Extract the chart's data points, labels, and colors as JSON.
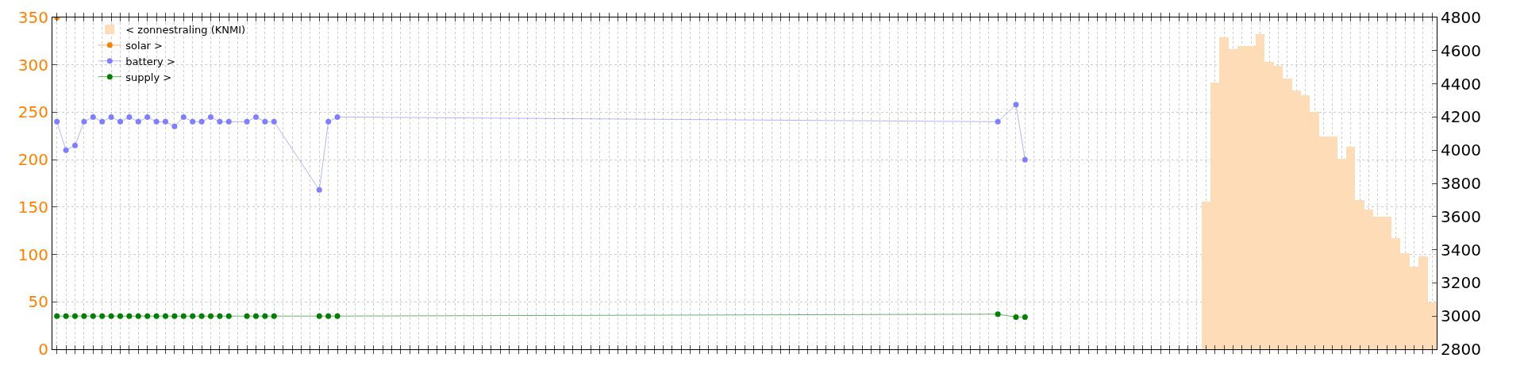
{
  "chart_data": {
    "type": "line",
    "categories": [
      null,
      null,
      null,
      null,
      null,
      null,
      null,
      null,
      null,
      null,
      null,
      null,
      null,
      null,
      null,
      null,
      null,
      null,
      null,
      null,
      null,
      null,
      null,
      null,
      null,
      null,
      null,
      null,
      null,
      null,
      null,
      null,
      null,
      null,
      null,
      null,
      null,
      null,
      null,
      null,
      null,
      null,
      null,
      null,
      null,
      null,
      null,
      null,
      null,
      null,
      null,
      null,
      null,
      null,
      null,
      null,
      null,
      null,
      null,
      null,
      null,
      null,
      null,
      null,
      null,
      null,
      null,
      null,
      null,
      null,
      null,
      null,
      null,
      null,
      null,
      null,
      null,
      null,
      null,
      null,
      null,
      null,
      null,
      null,
      null,
      null,
      null,
      null,
      null,
      null,
      null,
      null,
      null,
      null,
      null,
      null,
      null,
      null,
      null,
      null,
      null,
      null,
      null,
      null,
      null,
      null,
      null,
      null,
      null,
      null,
      null,
      null,
      null,
      null,
      null,
      null,
      null,
      null,
      null,
      null,
      null,
      null,
      null,
      null,
      null,
      null,
      null,
      null,
      null,
      null,
      null,
      null,
      null,
      null,
      null,
      null,
      null,
      null,
      null,
      null,
      null,
      null,
      null,
      null,
      null,
      null,
      null,
      null,
      null,
      null,
      null,
      null,
      null
    ],
    "series": [
      {
        "name": "< zonnestraling (KNMI)",
        "type": "bar",
        "axis": "y2",
        "color": "#ffdcb8",
        "values": [
          null,
          null,
          null,
          null,
          null,
          null,
          null,
          null,
          null,
          null,
          null,
          null,
          null,
          null,
          null,
          null,
          null,
          null,
          null,
          null,
          null,
          null,
          null,
          null,
          null,
          null,
          null,
          null,
          null,
          null,
          null,
          null,
          null,
          null,
          null,
          null,
          null,
          null,
          null,
          null,
          null,
          null,
          null,
          null,
          null,
          null,
          null,
          null,
          null,
          null,
          null,
          null,
          null,
          null,
          null,
          null,
          null,
          null,
          null,
          null,
          null,
          null,
          null,
          null,
          null,
          null,
          null,
          null,
          null,
          null,
          null,
          null,
          null,
          null,
          null,
          null,
          null,
          null,
          null,
          null,
          null,
          null,
          null,
          null,
          null,
          null,
          null,
          null,
          null,
          null,
          null,
          null,
          null,
          null,
          null,
          null,
          null,
          null,
          null,
          null,
          null,
          null,
          null,
          null,
          null,
          null,
          null,
          null,
          null,
          null,
          null,
          null,
          null,
          null,
          null,
          null,
          null,
          null,
          null,
          null,
          null,
          null,
          null,
          null,
          null,
          null,
          null,
          3690,
          4410,
          4680,
          4610,
          4630,
          4630,
          4700,
          4530,
          4510,
          4430,
          4360,
          4330,
          4230,
          4080,
          4080,
          3950,
          4020,
          3700,
          3640,
          3600,
          3600,
          3470,
          3380,
          3300,
          3360,
          3080
        ]
      },
      {
        "name": "solar >",
        "color": "#f5800a",
        "values": [
          350,
          null,
          null,
          null,
          null,
          null,
          null,
          null,
          null,
          null,
          null,
          null,
          null,
          null,
          null,
          null,
          null,
          null,
          null,
          null,
          null,
          null,
          null,
          null,
          null,
          null,
          null,
          null,
          null,
          null,
          null,
          null,
          null,
          null,
          null,
          null,
          null,
          null,
          null,
          null,
          null,
          null,
          null,
          null,
          null,
          null,
          null,
          null,
          null,
          null,
          null,
          null,
          null,
          null,
          null,
          null,
          null,
          null,
          null,
          null,
          null,
          null,
          null,
          null,
          null,
          null,
          null,
          null,
          null,
          null,
          null,
          null,
          null,
          null,
          null,
          null,
          null,
          null,
          null,
          null,
          null,
          null,
          null,
          null,
          null,
          null,
          null,
          null,
          null,
          null,
          null,
          null,
          null,
          null,
          null,
          null,
          null,
          null,
          null,
          null,
          null,
          null,
          null,
          null,
          null,
          null,
          null,
          null,
          null,
          null,
          null,
          null,
          null,
          null,
          null,
          null,
          null,
          null,
          null,
          null,
          null,
          null,
          null,
          null,
          null,
          null,
          null,
          null,
          null,
          null,
          null,
          null,
          null,
          null,
          null,
          null,
          null,
          null,
          null,
          null,
          null,
          null,
          null,
          null,
          null,
          null,
          null,
          null,
          null,
          null,
          null,
          null,
          null
        ]
      },
      {
        "name": "battery >",
        "color": "#8080ff",
        "values": [
          240,
          210,
          215,
          240,
          245,
          240,
          245,
          240,
          245,
          240,
          245,
          240,
          240,
          235,
          245,
          240,
          240,
          245,
          240,
          240,
          null,
          240,
          245,
          240,
          240,
          null,
          null,
          null,
          null,
          168,
          240,
          245,
          null,
          null,
          null,
          null,
          null,
          null,
          null,
          null,
          null,
          null,
          null,
          null,
          null,
          null,
          null,
          null,
          null,
          null,
          null,
          null,
          null,
          null,
          null,
          null,
          null,
          null,
          null,
          null,
          null,
          null,
          null,
          null,
          null,
          null,
          null,
          null,
          null,
          null,
          null,
          null,
          null,
          null,
          null,
          null,
          null,
          null,
          null,
          null,
          null,
          null,
          null,
          null,
          null,
          null,
          null,
          null,
          null,
          null,
          null,
          null,
          null,
          null,
          null,
          null,
          null,
          null,
          null,
          null,
          null,
          null,
          null,
          null,
          240,
          null,
          258,
          200,
          null,
          null,
          null,
          null,
          null,
          null,
          null,
          null,
          null,
          null,
          null,
          null,
          null,
          null,
          null,
          null,
          null,
          null,
          null,
          null,
          null,
          null,
          null,
          null,
          null,
          null,
          null,
          null,
          null,
          null,
          null,
          null,
          null,
          null,
          null,
          null,
          null,
          null,
          null,
          null,
          null,
          null,
          null,
          null,
          null
        ]
      },
      {
        "name": "supply >",
        "color": "#008000",
        "values": [
          35,
          35,
          35,
          35,
          35,
          35,
          35,
          35,
          35,
          35,
          35,
          35,
          35,
          35,
          35,
          35,
          35,
          35,
          35,
          35,
          null,
          35,
          35,
          35,
          35,
          null,
          null,
          null,
          null,
          35,
          35,
          35,
          null,
          null,
          null,
          null,
          null,
          null,
          null,
          null,
          null,
          null,
          null,
          null,
          null,
          null,
          null,
          null,
          null,
          null,
          null,
          null,
          null,
          null,
          null,
          null,
          null,
          null,
          null,
          null,
          null,
          null,
          null,
          null,
          null,
          null,
          null,
          null,
          null,
          null,
          null,
          null,
          null,
          null,
          null,
          null,
          null,
          null,
          null,
          null,
          null,
          null,
          null,
          null,
          null,
          null,
          null,
          null,
          null,
          null,
          null,
          null,
          null,
          null,
          null,
          null,
          null,
          null,
          null,
          null,
          null,
          null,
          null,
          null,
          37,
          null,
          34,
          34,
          null,
          null,
          null,
          null,
          null,
          null,
          null,
          null,
          null,
          null,
          null,
          null,
          null,
          null,
          null,
          null,
          null,
          null,
          null,
          null,
          null,
          null,
          null,
          null,
          null,
          null,
          null,
          null,
          null,
          null,
          null,
          null,
          null,
          null,
          null,
          null,
          null,
          null,
          null,
          null,
          null,
          null,
          null,
          null,
          null
        ]
      }
    ],
    "ylim": [
      0,
      350
    ],
    "yticks": [
      0,
      50,
      100,
      150,
      200,
      250,
      300,
      350
    ],
    "y2lim": [
      2800,
      4800
    ],
    "y2ticks": [
      2800,
      3000,
      3200,
      3400,
      3600,
      3800,
      4000,
      4200,
      4400,
      4600,
      4800
    ],
    "grid": true,
    "legend": "top left",
    "marker": "circle"
  }
}
